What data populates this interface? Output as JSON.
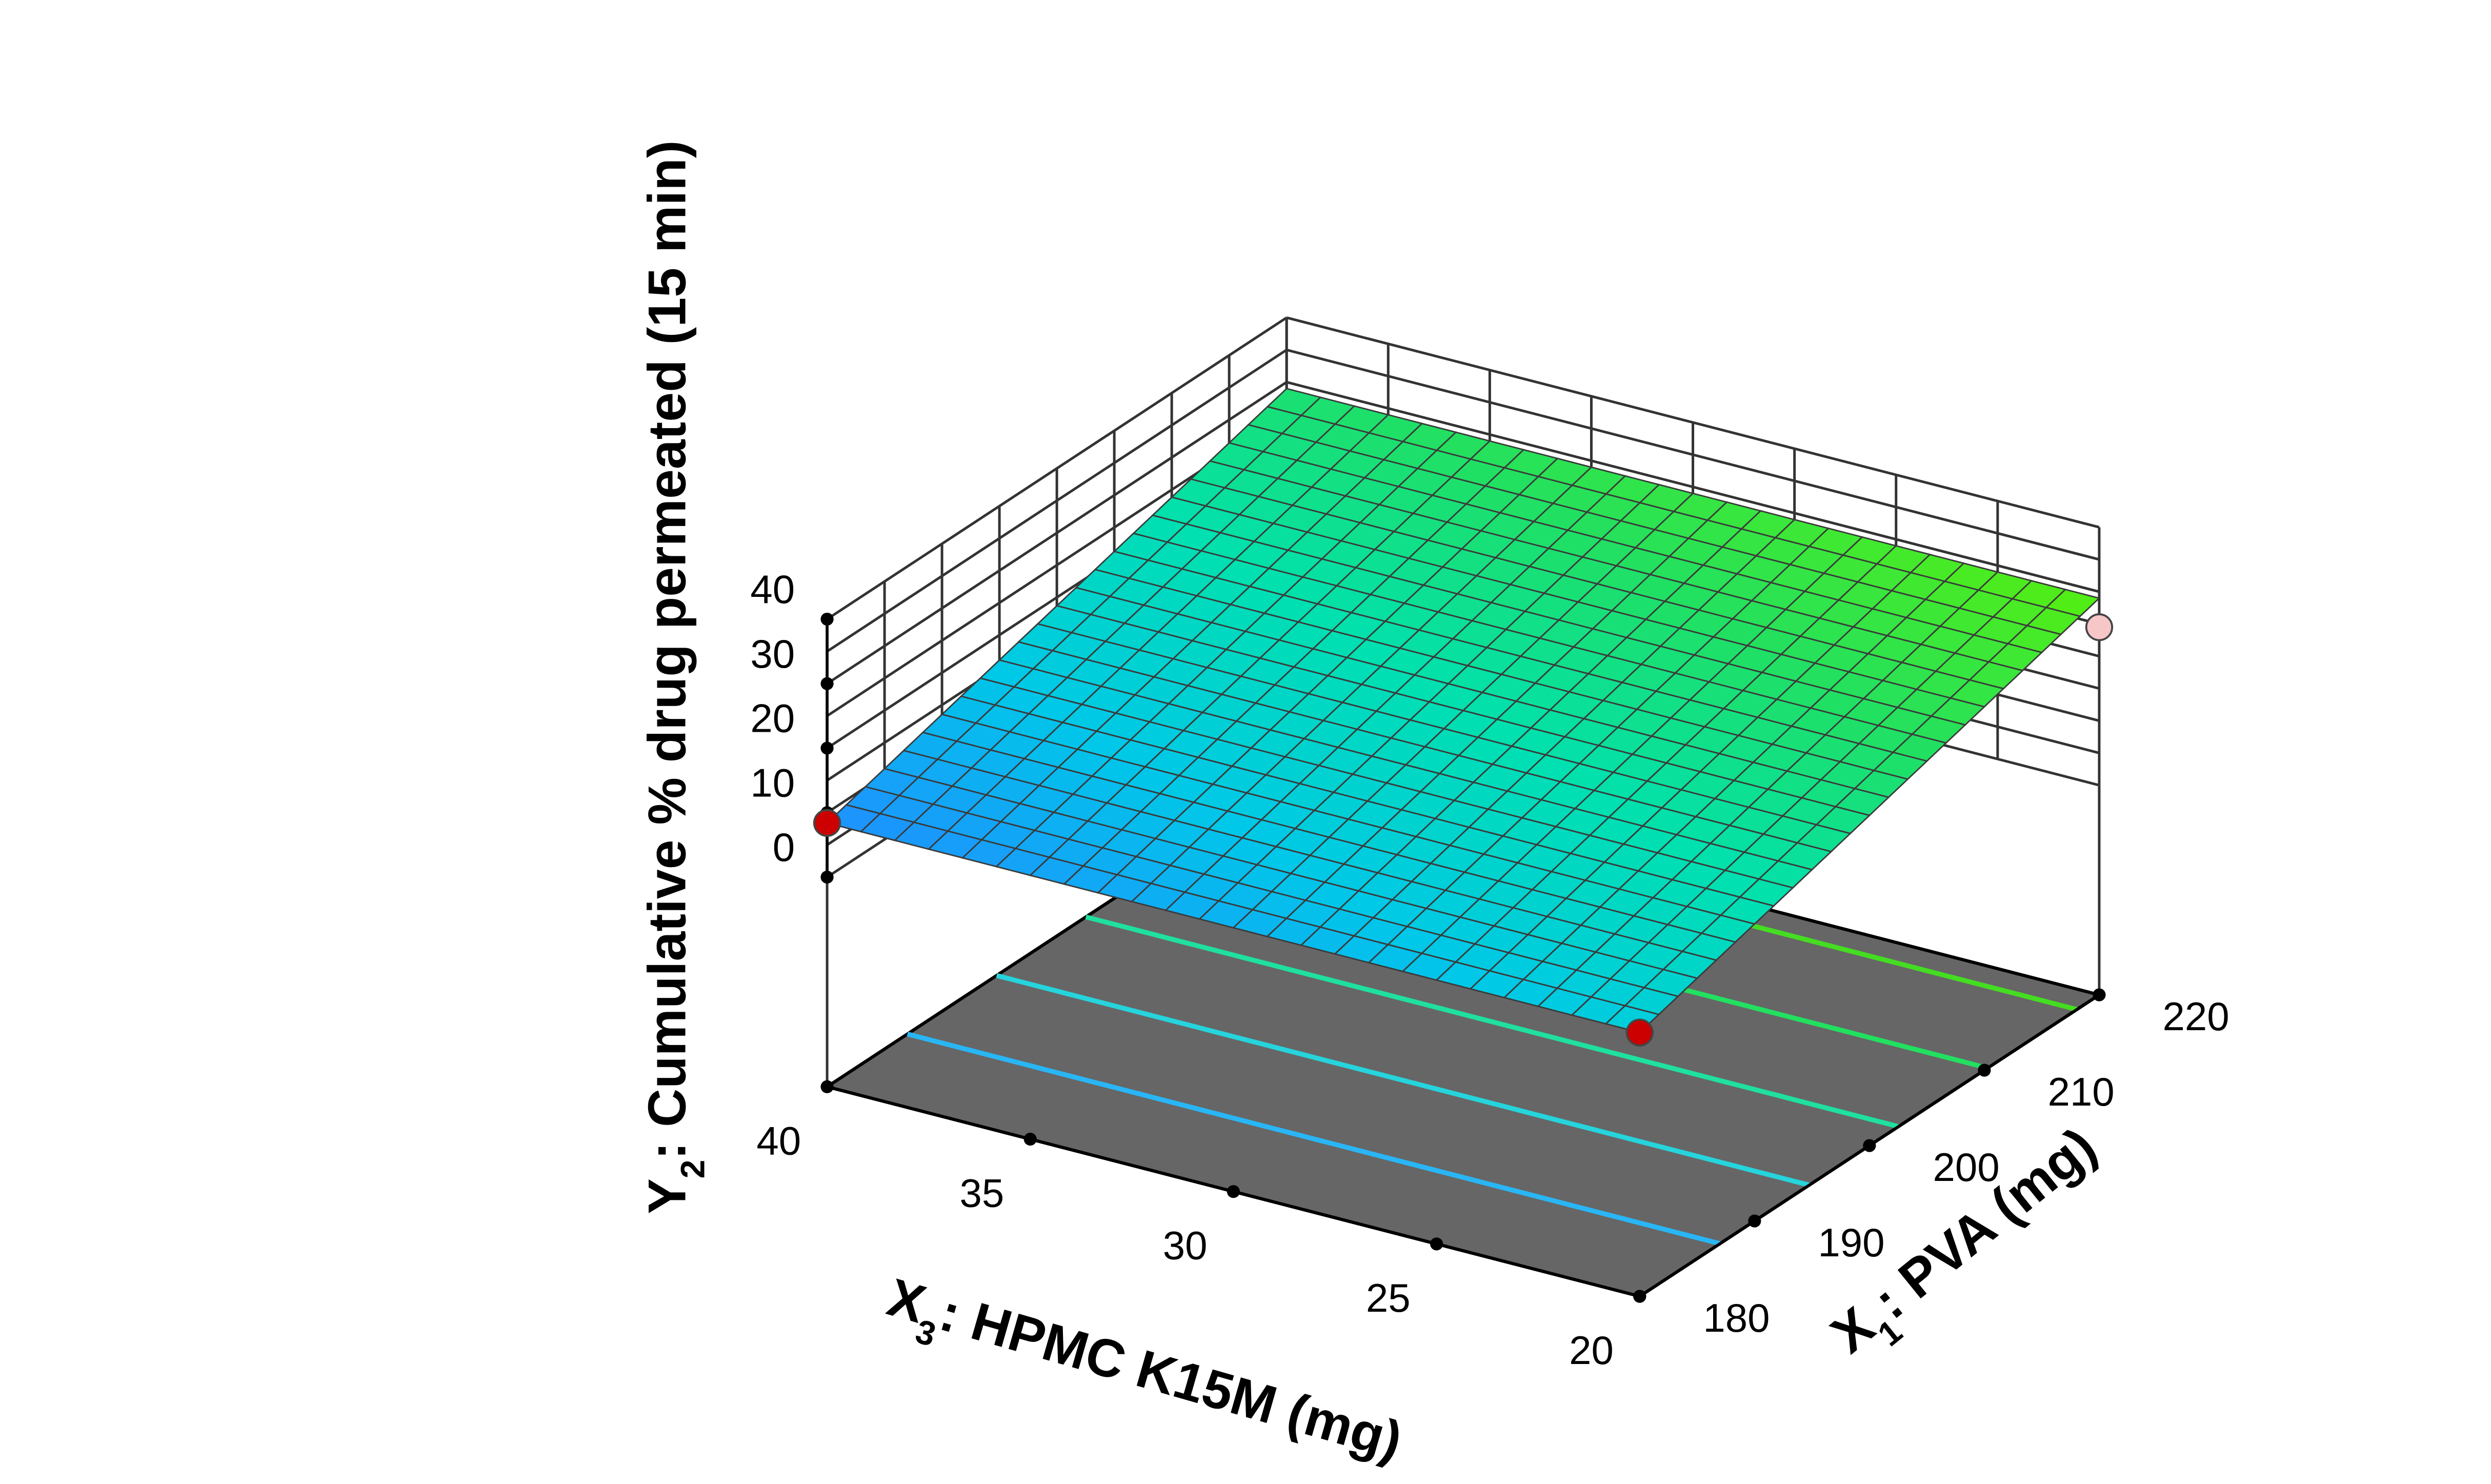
{
  "chart_data": {
    "type": "surface3d",
    "title": "",
    "xlabel": {
      "var": "X",
      "sub": "3",
      "rest": ": HPMC K15M (mg)"
    },
    "ylabel": {
      "var": "X",
      "sub": "1",
      "rest": ": PVA (mg)"
    },
    "zlabel": {
      "var": "Y",
      "sub": "2",
      "rest": ": Cumulative % drug permeated (15 min)"
    },
    "x_ticks": [
      "40",
      "35",
      "30",
      "25",
      "20"
    ],
    "x_tick_values": [
      40,
      35,
      30,
      25,
      20
    ],
    "y_ticks": [
      "180",
      "190",
      "200",
      "210",
      "220"
    ],
    "y_tick_values": [
      180,
      190,
      200,
      210,
      220
    ],
    "z_ticks": [
      "0",
      "10",
      "20",
      "30",
      "40"
    ],
    "z_tick_values": [
      0,
      10,
      20,
      30,
      40
    ],
    "xlim": [
      20,
      40
    ],
    "ylim": [
      180,
      220
    ],
    "zlim": [
      0,
      40
    ],
    "surface_corners": [
      {
        "x": 40,
        "y": 180,
        "z": 8.4
      },
      {
        "x": 20,
        "y": 180,
        "z": 8.4
      },
      {
        "x": 20,
        "y": 220,
        "z": 29.0
      },
      {
        "x": 40,
        "y": 220,
        "z": 29.0
      }
    ],
    "design_points": [
      {
        "x": 40,
        "y": 180,
        "z": 8.4,
        "color": "#cc0000"
      },
      {
        "x": 20,
        "y": 180,
        "z": 8.4,
        "color": "#cc0000"
      },
      {
        "x": 20,
        "y": 220,
        "z": 24.5,
        "color": "#f7c6c6"
      }
    ],
    "contour_levels": [
      12,
      16,
      20,
      24,
      28
    ],
    "contour_colors": [
      "#29b6f6",
      "#26d4dc",
      "#1fe0a0",
      "#22e060",
      "#44dd22"
    ],
    "floor_color": "#666666",
    "colormap": [
      "#1e90ff",
      "#00c8e8",
      "#00e0b0",
      "#22e060",
      "#55ee10"
    ],
    "grid": true
  }
}
